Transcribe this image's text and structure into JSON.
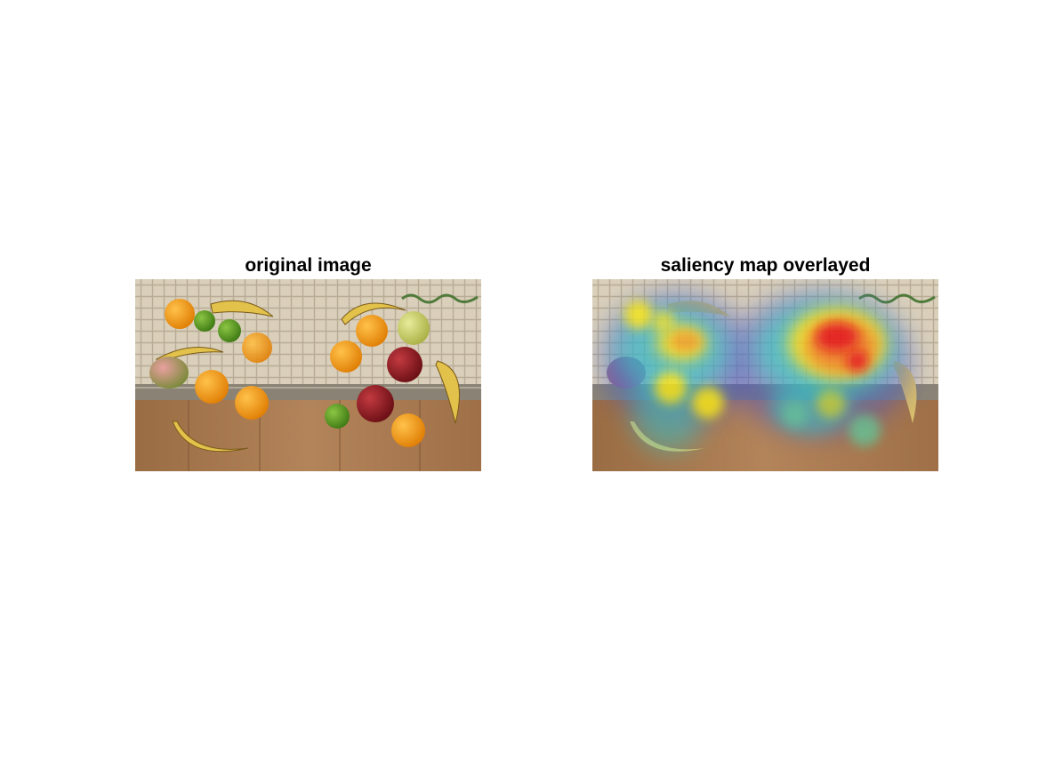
{
  "figure": {
    "panels": [
      {
        "title": "original image",
        "content": "fruit-photo"
      },
      {
        "title": "saliency map overlayed",
        "content": "fruit-photo-with-saliency-heatmap"
      }
    ],
    "colors": {
      "background": "#ffffff",
      "table_wood": "#a77a4e",
      "towel": "#d8cdb8",
      "towel_border": "#8a8375",
      "orange": "#f0960f",
      "lime": "#5a9a22",
      "apple": "#8f1a20",
      "pear": "#cdd56a",
      "banana": "#e2c24a",
      "heat_low": "#3a4dc8",
      "heat_mid": "#30d0c8",
      "heat_high": "#f2e21a",
      "heat_max": "#e80a0a"
    }
  }
}
